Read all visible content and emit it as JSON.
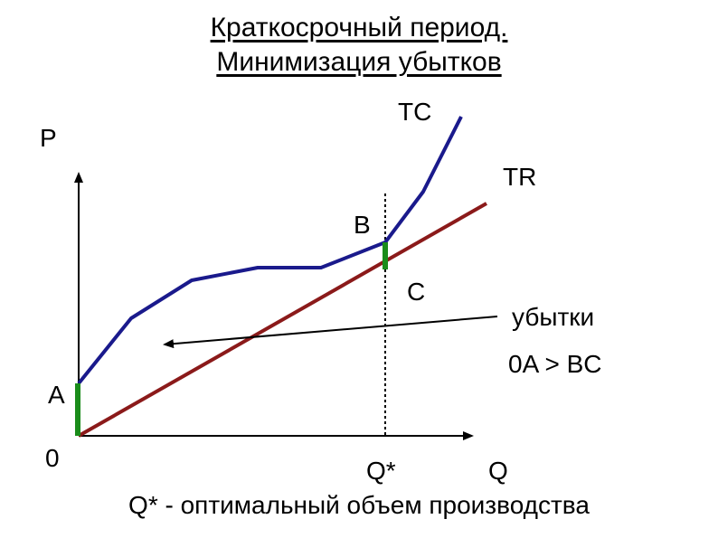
{
  "title": {
    "line1": "Краткосрочный период.",
    "line2": "Минимизация убытков"
  },
  "labels": {
    "y_axis": "P",
    "x_axis": "Q",
    "origin": "0",
    "point_a": "A",
    "point_b": "B",
    "point_c": "C",
    "q_star": "Q*",
    "tc": "TC",
    "tr": "TR",
    "losses": "убытки",
    "inequality": "0A > BC"
  },
  "footnote": "Q* - оптимальный объем производства",
  "colors": {
    "tc_curve": "#1a1a8c",
    "tr_line": "#8b1a1a",
    "loss_segment": "#1a8c1a",
    "axis": "#000000"
  }
}
